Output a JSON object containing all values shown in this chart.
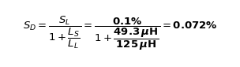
{
  "formula": "$S_D = \\dfrac{S_L}{1+\\dfrac{L_S}{L_L}} = \\dfrac{\\mathbf{0.1\\%}}{1+\\dfrac{\\mathbf{49.3}\\,\\boldsymbol{\\mu}\\mathbf{H}}{\\mathbf{125}\\,\\boldsymbol{\\mu}\\mathbf{H}}} = \\mathbf{0.072\\%}$",
  "background_color": "#ffffff",
  "text_color": "#000000",
  "fontsize": 9.5
}
